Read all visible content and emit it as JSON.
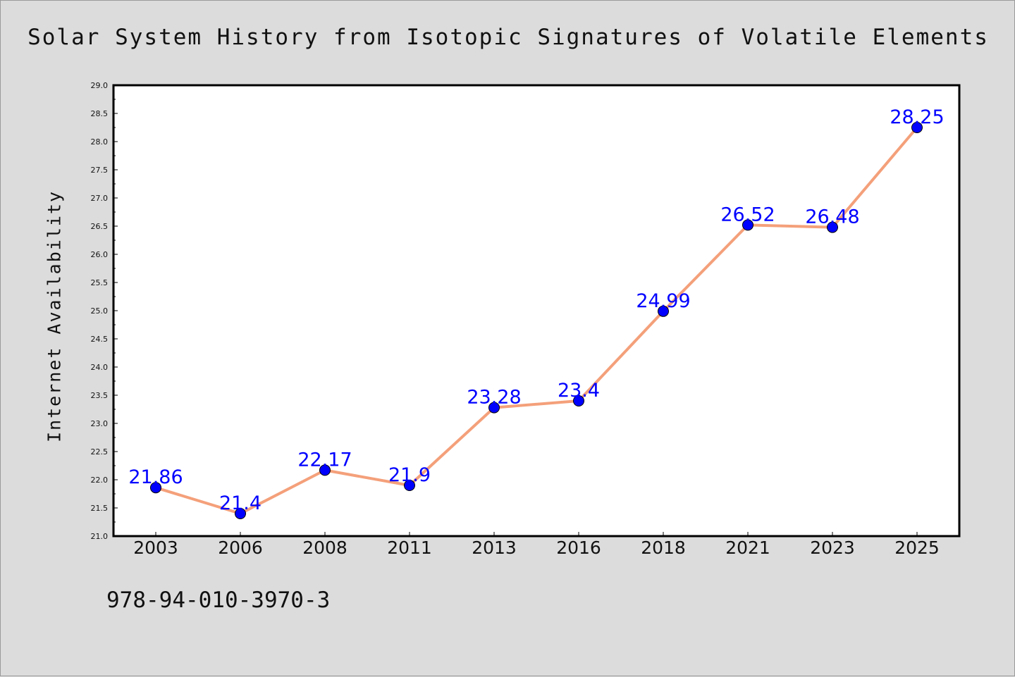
{
  "title": "Solar System History from Isotopic Signatures of Volatile Elements",
  "footer_text": "978-94-010-3970-3",
  "colors": {
    "background": "#dcdcdc",
    "plot_area": "#ffffff",
    "line": "#f4a07a",
    "marker": "#0000ff",
    "data_label": "#0000ff"
  },
  "chart_data": {
    "type": "line",
    "title": "Solar System History from Isotopic Signatures of Volatile Elements",
    "xlabel": "",
    "ylabel": "Internet Availability",
    "categories": [
      "2003",
      "2006",
      "2008",
      "2011",
      "2013",
      "2016",
      "2018",
      "2021",
      "2023",
      "2025"
    ],
    "series": [
      {
        "values": [
          21.86,
          21.4,
          22.17,
          21.9,
          23.28,
          23.4,
          24.99,
          26.52,
          26.48,
          28.25
        ],
        "labels": [
          "21.86",
          "21.4",
          "22.17",
          "21.9",
          "23.28",
          "23.4",
          "24.99",
          "26.52",
          "26.48",
          "28.25"
        ]
      }
    ],
    "ylim": [
      21.0,
      29.0
    ],
    "yticks": [
      "21.0",
      "21.5",
      "22.0",
      "22.5",
      "23.0",
      "23.5",
      "24.0",
      "24.5",
      "25.0",
      "25.5",
      "26.0",
      "26.5",
      "27.0",
      "27.5",
      "28.0",
      "28.5",
      "29.0"
    ],
    "grid": false,
    "legend": "none"
  }
}
